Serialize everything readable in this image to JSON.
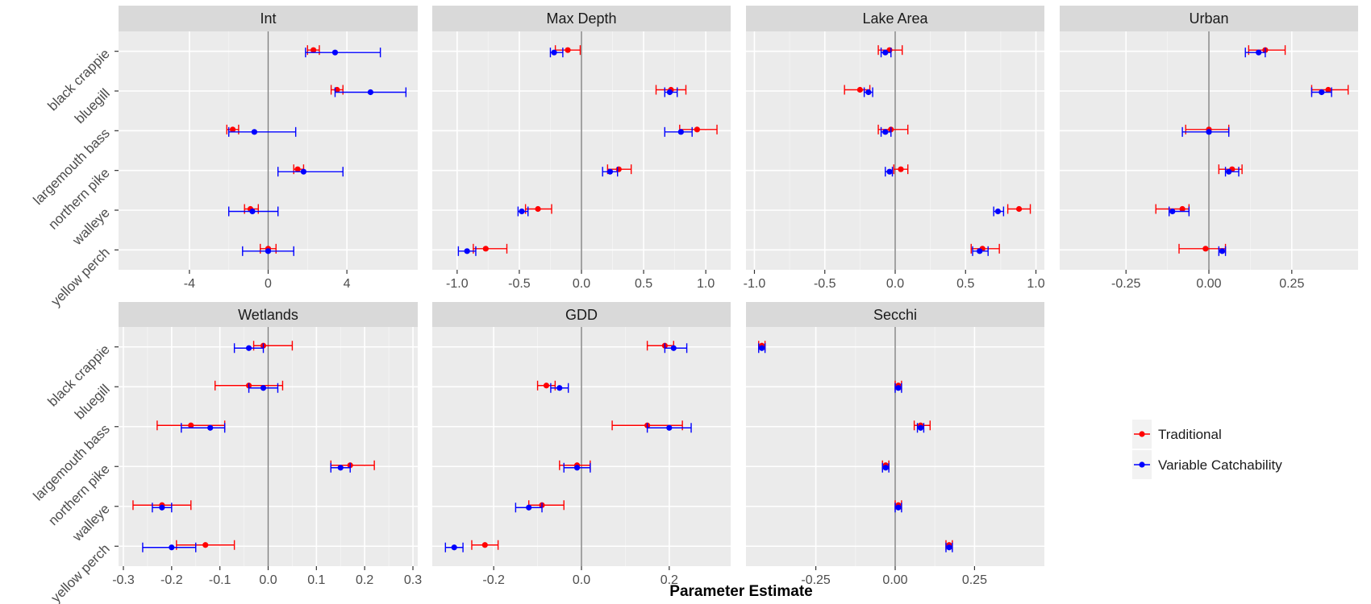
{
  "chart_data": {
    "type": "errorbar-facets",
    "xlabel": "Parameter Estimate",
    "ylabel": "",
    "species": [
      "black crappie",
      "bluegill",
      "largemouth bass",
      "northern pike",
      "walleye",
      "yellow perch"
    ],
    "legend": {
      "position": "right",
      "entries": [
        {
          "name": "Traditional",
          "color": "#ff0000"
        },
        {
          "name": "Variable Catchability",
          "color": "#0000ff"
        }
      ]
    },
    "panels": [
      {
        "title": "Int",
        "xlim": [
          -7.6,
          7.6
        ],
        "ticks": [
          -4,
          0,
          4
        ],
        "tick_labels": [
          "-4",
          "0",
          "4"
        ],
        "series": [
          {
            "name": "Traditional",
            "points": [
              {
                "est": 2.3,
                "lo": 2.0,
                "hi": 2.6
              },
              {
                "est": 3.5,
                "lo": 3.2,
                "hi": 3.8
              },
              {
                "est": -1.8,
                "lo": -2.1,
                "hi": -1.5
              },
              {
                "est": 1.5,
                "lo": 1.3,
                "hi": 1.8
              },
              {
                "est": -0.9,
                "lo": -1.2,
                "hi": -0.5
              },
              {
                "est": 0.0,
                "lo": -0.4,
                "hi": 0.4
              }
            ]
          },
          {
            "name": "Variable Catchability",
            "points": [
              {
                "est": 3.4,
                "lo": 1.9,
                "hi": 5.7
              },
              {
                "est": 5.2,
                "lo": 3.4,
                "hi": 7.0
              },
              {
                "est": -0.7,
                "lo": -2.0,
                "hi": 1.4
              },
              {
                "est": 1.8,
                "lo": 0.5,
                "hi": 3.8
              },
              {
                "est": -0.8,
                "lo": -2.0,
                "hi": 0.5
              },
              {
                "est": 0.0,
                "lo": -1.3,
                "hi": 1.3
              }
            ]
          }
        ]
      },
      {
        "title": "Max Depth",
        "xlim": [
          -1.2,
          1.2
        ],
        "ticks": [
          -1.0,
          -0.5,
          0.0,
          0.5,
          1.0
        ],
        "tick_labels": [
          "-1.0",
          "-0.5",
          "0.0",
          "0.5",
          "1.0"
        ],
        "series": [
          {
            "name": "Traditional",
            "points": [
              {
                "est": -0.11,
                "lo": -0.21,
                "hi": -0.01
              },
              {
                "est": 0.72,
                "lo": 0.6,
                "hi": 0.84
              },
              {
                "est": 0.93,
                "lo": 0.79,
                "hi": 1.09
              },
              {
                "est": 0.3,
                "lo": 0.21,
                "hi": 0.4
              },
              {
                "est": -0.35,
                "lo": -0.45,
                "hi": -0.24
              },
              {
                "est": -0.77,
                "lo": -0.87,
                "hi": -0.6
              }
            ]
          },
          {
            "name": "Variable Catchability",
            "points": [
              {
                "est": -0.22,
                "lo": -0.25,
                "hi": -0.15
              },
              {
                "est": 0.71,
                "lo": 0.67,
                "hi": 0.77
              },
              {
                "est": 0.8,
                "lo": 0.67,
                "hi": 0.89
              },
              {
                "est": 0.23,
                "lo": 0.17,
                "hi": 0.29
              },
              {
                "est": -0.48,
                "lo": -0.51,
                "hi": -0.43
              },
              {
                "est": -0.92,
                "lo": -0.99,
                "hi": -0.85
              }
            ]
          }
        ]
      },
      {
        "title": "Lake Area",
        "xlim": [
          -1.06,
          1.06
        ],
        "ticks": [
          -1.0,
          -0.5,
          0.0,
          0.5,
          1.0
        ],
        "tick_labels": [
          "-1.0",
          "-0.5",
          "0.0",
          "0.5",
          "1.0"
        ],
        "series": [
          {
            "name": "Traditional",
            "points": [
              {
                "est": -0.04,
                "lo": -0.12,
                "hi": 0.05
              },
              {
                "est": -0.25,
                "lo": -0.36,
                "hi": -0.18
              },
              {
                "est": -0.03,
                "lo": -0.12,
                "hi": 0.09
              },
              {
                "est": 0.04,
                "lo": -0.01,
                "hi": 0.09
              },
              {
                "est": 0.88,
                "lo": 0.8,
                "hi": 0.96
              },
              {
                "est": 0.62,
                "lo": 0.54,
                "hi": 0.74
              }
            ]
          },
          {
            "name": "Variable Catchability",
            "points": [
              {
                "est": -0.07,
                "lo": -0.1,
                "hi": -0.03
              },
              {
                "est": -0.19,
                "lo": -0.22,
                "hi": -0.16
              },
              {
                "est": -0.07,
                "lo": -0.1,
                "hi": -0.03
              },
              {
                "est": -0.04,
                "lo": -0.07,
                "hi": -0.02
              },
              {
                "est": 0.73,
                "lo": 0.7,
                "hi": 0.77
              },
              {
                "est": 0.6,
                "lo": 0.55,
                "hi": 0.66
              }
            ]
          }
        ]
      },
      {
        "title": "Urban",
        "xlim": [
          -0.45,
          0.45
        ],
        "ticks": [
          -0.25,
          0.0,
          0.25
        ],
        "tick_labels": [
          "-0.25",
          "0.00",
          "0.25"
        ],
        "series": [
          {
            "name": "Traditional",
            "points": [
              {
                "est": 0.17,
                "lo": 0.12,
                "hi": 0.23
              },
              {
                "est": 0.36,
                "lo": 0.31,
                "hi": 0.42
              },
              {
                "est": 0.0,
                "lo": -0.07,
                "hi": 0.06
              },
              {
                "est": 0.07,
                "lo": 0.03,
                "hi": 0.1
              },
              {
                "est": -0.08,
                "lo": -0.16,
                "hi": -0.06
              },
              {
                "est": -0.01,
                "lo": -0.09,
                "hi": 0.05
              }
            ]
          },
          {
            "name": "Variable Catchability",
            "points": [
              {
                "est": 0.15,
                "lo": 0.11,
                "hi": 0.17
              },
              {
                "est": 0.34,
                "lo": 0.31,
                "hi": 0.37
              },
              {
                "est": 0.0,
                "lo": -0.08,
                "hi": 0.06
              },
              {
                "est": 0.06,
                "lo": 0.05,
                "hi": 0.09
              },
              {
                "est": -0.11,
                "lo": -0.12,
                "hi": -0.06
              },
              {
                "est": 0.04,
                "lo": 0.03,
                "hi": 0.05
              }
            ]
          }
        ]
      },
      {
        "title": "Wetlands",
        "xlim": [
          -0.31,
          0.31
        ],
        "ticks": [
          -0.3,
          -0.2,
          -0.1,
          0.0,
          0.1,
          0.2,
          0.3
        ],
        "tick_labels": [
          "-0.3",
          "-0.2",
          "-0.1",
          "0.0",
          "0.1",
          "0.2",
          "0.3"
        ],
        "series": [
          {
            "name": "Traditional",
            "points": [
              {
                "est": -0.01,
                "lo": -0.03,
                "hi": 0.05
              },
              {
                "est": -0.04,
                "lo": -0.11,
                "hi": 0.03
              },
              {
                "est": -0.16,
                "lo": -0.23,
                "hi": -0.09
              },
              {
                "est": 0.17,
                "lo": 0.13,
                "hi": 0.22
              },
              {
                "est": -0.22,
                "lo": -0.28,
                "hi": -0.16
              },
              {
                "est": -0.13,
                "lo": -0.19,
                "hi": -0.07
              }
            ]
          },
          {
            "name": "Variable Catchability",
            "points": [
              {
                "est": -0.04,
                "lo": -0.07,
                "hi": -0.01
              },
              {
                "est": -0.01,
                "lo": -0.04,
                "hi": 0.02
              },
              {
                "est": -0.12,
                "lo": -0.18,
                "hi": -0.09
              },
              {
                "est": 0.15,
                "lo": 0.13,
                "hi": 0.17
              },
              {
                "est": -0.22,
                "lo": -0.24,
                "hi": -0.2
              },
              {
                "est": -0.2,
                "lo": -0.26,
                "hi": -0.15
              }
            ]
          }
        ]
      },
      {
        "title": "GDD",
        "xlim": [
          -0.34,
          0.34
        ],
        "ticks": [
          -0.2,
          0.0,
          0.2
        ],
        "tick_labels": [
          "-0.2",
          "0.0",
          "0.2"
        ],
        "series": [
          {
            "name": "Traditional",
            "points": [
              {
                "est": 0.19,
                "lo": 0.15,
                "hi": 0.21
              },
              {
                "est": -0.08,
                "lo": -0.1,
                "hi": -0.06
              },
              {
                "est": 0.15,
                "lo": 0.07,
                "hi": 0.23
              },
              {
                "est": -0.01,
                "lo": -0.05,
                "hi": 0.02
              },
              {
                "est": -0.09,
                "lo": -0.12,
                "hi": -0.04
              },
              {
                "est": -0.22,
                "lo": -0.25,
                "hi": -0.19
              }
            ]
          },
          {
            "name": "Variable Catchability",
            "points": [
              {
                "est": 0.21,
                "lo": 0.19,
                "hi": 0.24
              },
              {
                "est": -0.05,
                "lo": -0.07,
                "hi": -0.03
              },
              {
                "est": 0.2,
                "lo": 0.15,
                "hi": 0.25
              },
              {
                "est": -0.01,
                "lo": -0.04,
                "hi": 0.02
              },
              {
                "est": -0.12,
                "lo": -0.15,
                "hi": -0.09
              },
              {
                "est": -0.29,
                "lo": -0.31,
                "hi": -0.27
              }
            ]
          }
        ]
      },
      {
        "title": "Secchi",
        "xlim": [
          -0.47,
          0.47
        ],
        "ticks": [
          -0.25,
          0.0,
          0.25
        ],
        "tick_labels": [
          "-0.25",
          "0.00",
          "0.25"
        ],
        "series": [
          {
            "name": "Traditional",
            "points": [
              {
                "est": -0.42,
                "lo": -0.43,
                "hi": -0.41
              },
              {
                "est": 0.01,
                "lo": 0.0,
                "hi": 0.02
              },
              {
                "est": 0.08,
                "lo": 0.06,
                "hi": 0.11
              },
              {
                "est": -0.03,
                "lo": -0.04,
                "hi": -0.02
              },
              {
                "est": 0.01,
                "lo": 0.0,
                "hi": 0.02
              },
              {
                "est": 0.17,
                "lo": 0.16,
                "hi": 0.18
              }
            ]
          },
          {
            "name": "Variable Catchability",
            "points": [
              {
                "est": -0.42,
                "lo": -0.43,
                "hi": -0.41
              },
              {
                "est": 0.01,
                "lo": 0.0,
                "hi": 0.02
              },
              {
                "est": 0.08,
                "lo": 0.07,
                "hi": 0.09
              },
              {
                "est": -0.03,
                "lo": -0.04,
                "hi": -0.02
              },
              {
                "est": 0.01,
                "lo": 0.0,
                "hi": 0.02
              },
              {
                "est": 0.17,
                "lo": 0.16,
                "hi": 0.18
              }
            ]
          }
        ]
      }
    ]
  }
}
